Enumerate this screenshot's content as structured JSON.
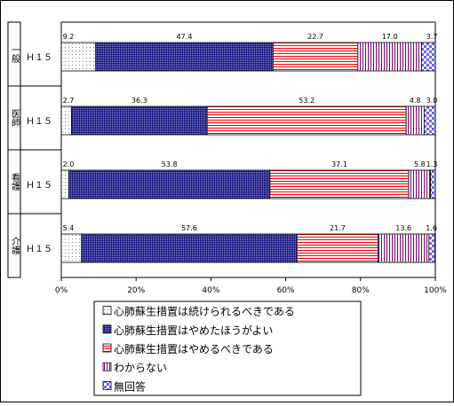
{
  "chart_data": {
    "type": "bar",
    "orientation": "horizontal",
    "stacked": "percent",
    "xlim": [
      0,
      100
    ],
    "x_ticks": [
      "0%",
      "20%",
      "40%",
      "60%",
      "80%",
      "100%"
    ],
    "rows": [
      {
        "group": "一般",
        "label": "Ｈ１５"
      },
      {
        "group": "医師",
        "label": "Ｈ１５"
      },
      {
        "group": "看護",
        "label": "Ｈ１５"
      },
      {
        "group": "介護",
        "label": "Ｈ１５"
      }
    ],
    "series": [
      {
        "name": "心肺蘇生措置は続けられるべきである",
        "values": [
          9.2,
          2.7,
          2.0,
          5.4
        ],
        "labels": [
          "9.2",
          "2.7",
          "2.0",
          "5.4"
        ],
        "color": "#ffffff",
        "pattern": "dots"
      },
      {
        "name": "心肺蘇生措置はやめたほうがよい",
        "values": [
          47.4,
          36.3,
          53.8,
          57.6
        ],
        "labels": [
          "47.4",
          "36.3",
          "53.8",
          "57.6"
        ],
        "color": "#000080",
        "pattern": "dense"
      },
      {
        "name": "心肺蘇生措置はやめるべきである",
        "values": [
          22.7,
          53.2,
          37.1,
          21.7
        ],
        "labels": [
          "22.7",
          "53.2",
          "37.1",
          "21.7"
        ],
        "color": "#ff0000",
        "pattern": "hlines"
      },
      {
        "name": "わからない",
        "values": [
          17.0,
          4.8,
          5.8,
          13.6
        ],
        "labels": [
          "17.0",
          "4.8",
          "5.8",
          "13.6"
        ],
        "color": "#800080",
        "pattern": "vlines"
      },
      {
        "name": "無回答",
        "values": [
          3.7,
          3.0,
          1.3,
          1.6
        ],
        "labels": [
          "3.7",
          "3.0",
          "1.3",
          "1.6"
        ],
        "color": "#6666ff",
        "pattern": "checker"
      }
    ],
    "legend_position": "bottom",
    "grid": false
  }
}
